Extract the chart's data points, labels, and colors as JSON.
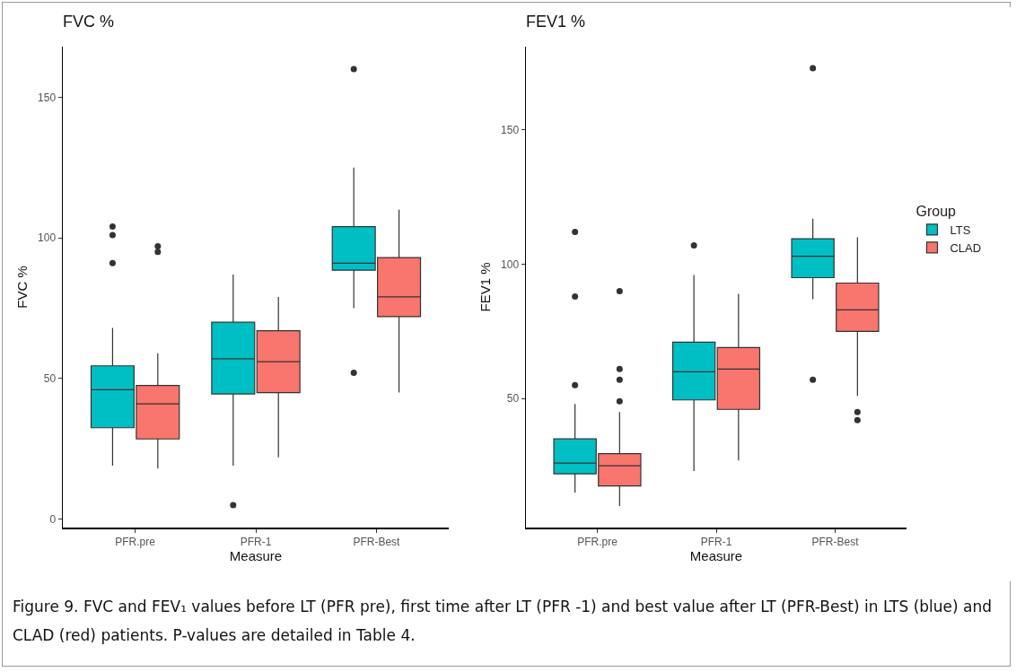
{
  "chart_data": [
    {
      "type": "box",
      "title": "FVC %",
      "xlabel": "Measure",
      "ylabel": "FVC %",
      "categories": [
        "PFR.pre",
        "PFR-1",
        "PFR-Best"
      ],
      "ylim": [
        -3,
        168
      ],
      "yticks": [
        0,
        50,
        100,
        150
      ],
      "grid": false,
      "legend": false,
      "series": [
        {
          "color": "#00bfc4",
          "boxes": [
            {
              "low": 19,
              "q1": 32.5,
              "median": 46,
              "q3": 54.5,
              "high": 68,
              "outliers": [
                104,
                101,
                91
              ]
            },
            {
              "low": 19,
              "q1": 44.5,
              "median": 57,
              "q3": 70,
              "high": 87,
              "outliers": [
                5
              ]
            },
            {
              "low": 75,
              "q1": 88.5,
              "median": 91,
              "q3": 104,
              "high": 125,
              "outliers": [
                160,
                52
              ]
            }
          ]
        },
        {
          "color": "#f8766d",
          "boxes": [
            {
              "low": 18,
              "q1": 28.5,
              "median": 41,
              "q3": 47.5,
              "high": 59,
              "outliers": [
                97,
                95
              ]
            },
            {
              "low": 22,
              "q1": 45,
              "median": 56,
              "q3": 67,
              "high": 79
            },
            {
              "low": 45,
              "q1": 72,
              "median": 79,
              "q3": 93,
              "high": 110
            }
          ]
        }
      ],
      "annotations": [
        "Figure 9. FVC and FEV₁ values before LT (PFR pre), first time after LT (PFR -1) and best value after LT (PFR-Best) in LTS (blue) and CLAD (red) patients. P-values are detailed in Table 4."
      ]
    },
    {
      "type": "box",
      "title": "FEV1 %",
      "xlabel": "Measure",
      "ylabel": "FEV1 %",
      "categories": [
        "PFR.pre",
        "PFR-1",
        "PFR-Best"
      ],
      "ylim": [
        2,
        181
      ],
      "yticks": [
        50,
        100,
        150
      ],
      "grid": false,
      "legend": "right",
      "legend_title": "Group",
      "series": [
        {
          "name": "LTS",
          "color": "#00bfc4",
          "boxes": [
            {
              "low": 15,
              "q1": 22,
              "median": 26,
              "q3": 35,
              "high": 48,
              "outliers": [
                112,
                88,
                55
              ]
            },
            {
              "low": 23,
              "q1": 49.5,
              "median": 60,
              "q3": 71,
              "high": 96,
              "outliers": [
                107
              ]
            },
            {
              "low": 87,
              "q1": 95,
              "median": 103,
              "q3": 109.5,
              "high": 117,
              "outliers": [
                173,
                57
              ]
            }
          ]
        },
        {
          "name": "CLAD",
          "color": "#f8766d",
          "boxes": [
            {
              "low": 10,
              "q1": 17.5,
              "median": 25,
              "q3": 29.5,
              "high": 45,
              "outliers": [
                90,
                61,
                57,
                49
              ]
            },
            {
              "low": 27,
              "q1": 46,
              "median": 61,
              "q3": 69,
              "high": 89
            },
            {
              "low": 51,
              "q1": 75,
              "median": 83,
              "q3": 93,
              "high": 110,
              "outliers": [
                45,
                42
              ]
            }
          ]
        }
      ]
    }
  ]
}
